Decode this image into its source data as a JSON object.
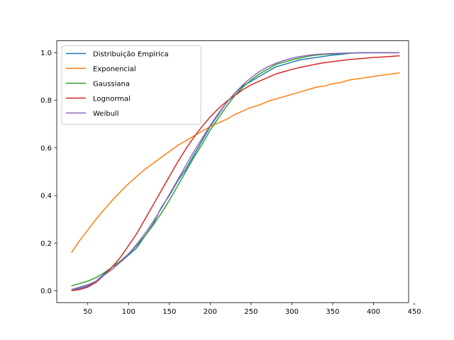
{
  "chart_data": {
    "type": "line",
    "title": "",
    "xlabel": "",
    "ylabel": "",
    "xlim": [
      12,
      443
    ],
    "ylim": [
      -0.05,
      1.05
    ],
    "xticks": [
      50,
      100,
      150,
      200,
      250,
      300,
      350,
      400,
      450
    ],
    "yticks": [
      0.0,
      0.2,
      0.4,
      0.6,
      0.8,
      1.0
    ],
    "xtick_labels": [
      "50",
      "100",
      "150",
      "200",
      "250",
      "300",
      "350",
      "400",
      "450"
    ],
    "ytick_labels": [
      "0.0",
      "0.2",
      "0.4",
      "0.6",
      "0.8",
      "1.0"
    ],
    "grid": false,
    "legend_position": "top-left",
    "series": [
      {
        "name": "Distribuição Empírica",
        "color": "#1f77b4",
        "x": [
          30,
          40,
          50,
          60,
          70,
          80,
          90,
          100,
          110,
          120,
          130,
          140,
          150,
          160,
          170,
          180,
          190,
          200,
          210,
          220,
          230,
          240,
          250,
          260,
          270,
          280,
          290,
          300,
          310,
          320,
          330,
          340,
          350,
          360,
          370,
          380,
          400,
          430
        ],
        "y": [
          0.0,
          0.01,
          0.02,
          0.04,
          0.07,
          0.1,
          0.12,
          0.15,
          0.18,
          0.23,
          0.28,
          0.35,
          0.4,
          0.46,
          0.51,
          0.57,
          0.63,
          0.69,
          0.74,
          0.79,
          0.83,
          0.86,
          0.88,
          0.9,
          0.92,
          0.94,
          0.95,
          0.96,
          0.97,
          0.975,
          0.98,
          0.985,
          0.99,
          0.993,
          0.997,
          1.0,
          1.0,
          1.0
        ]
      },
      {
        "name": "Exponencial",
        "color": "#ff7f0e",
        "x": [
          30,
          40,
          50,
          60,
          70,
          80,
          90,
          100,
          110,
          120,
          130,
          140,
          150,
          160,
          170,
          180,
          190,
          200,
          210,
          220,
          230,
          240,
          250,
          260,
          270,
          280,
          290,
          300,
          310,
          320,
          330,
          340,
          350,
          360,
          370,
          380,
          390,
          400,
          410,
          420,
          432
        ],
        "y": [
          0.16,
          0.21,
          0.255,
          0.3,
          0.34,
          0.38,
          0.415,
          0.45,
          0.48,
          0.51,
          0.535,
          0.56,
          0.585,
          0.61,
          0.63,
          0.65,
          0.67,
          0.69,
          0.705,
          0.72,
          0.74,
          0.755,
          0.77,
          0.78,
          0.795,
          0.805,
          0.815,
          0.825,
          0.835,
          0.845,
          0.855,
          0.86,
          0.87,
          0.875,
          0.885,
          0.89,
          0.895,
          0.9,
          0.905,
          0.91,
          0.915
        ]
      },
      {
        "name": "Gaussiana",
        "color": "#2ca02c",
        "x": [
          30,
          40,
          50,
          60,
          70,
          80,
          90,
          100,
          110,
          120,
          130,
          140,
          150,
          160,
          170,
          180,
          190,
          200,
          210,
          220,
          230,
          240,
          250,
          260,
          270,
          280,
          290,
          300,
          310,
          320,
          330,
          340,
          350,
          360,
          370,
          380,
          390,
          400,
          410,
          420,
          432
        ],
        "y": [
          0.02,
          0.03,
          0.04,
          0.055,
          0.075,
          0.1,
          0.125,
          0.155,
          0.19,
          0.23,
          0.275,
          0.325,
          0.38,
          0.44,
          0.5,
          0.56,
          0.615,
          0.675,
          0.725,
          0.775,
          0.82,
          0.855,
          0.885,
          0.91,
          0.93,
          0.95,
          0.96,
          0.97,
          0.978,
          0.985,
          0.99,
          0.993,
          0.995,
          0.997,
          0.998,
          0.999,
          0.999,
          1.0,
          1.0,
          1.0,
          1.0
        ]
      },
      {
        "name": "Lognormal",
        "color": "#d62728",
        "x": [
          30,
          40,
          50,
          60,
          70,
          80,
          90,
          100,
          110,
          120,
          130,
          140,
          150,
          160,
          170,
          180,
          190,
          200,
          210,
          220,
          230,
          240,
          250,
          260,
          270,
          280,
          290,
          300,
          310,
          320,
          330,
          340,
          350,
          360,
          370,
          380,
          390,
          400,
          410,
          420,
          432
        ],
        "y": [
          0.0,
          0.005,
          0.015,
          0.035,
          0.065,
          0.1,
          0.14,
          0.19,
          0.24,
          0.3,
          0.36,
          0.42,
          0.48,
          0.54,
          0.595,
          0.645,
          0.69,
          0.73,
          0.765,
          0.795,
          0.82,
          0.845,
          0.865,
          0.88,
          0.895,
          0.91,
          0.92,
          0.93,
          0.938,
          0.945,
          0.952,
          0.958,
          0.963,
          0.967,
          0.971,
          0.974,
          0.977,
          0.98,
          0.982,
          0.984,
          0.987
        ]
      },
      {
        "name": "Weibull",
        "color": "#9467bd",
        "x": [
          30,
          40,
          50,
          60,
          70,
          80,
          90,
          100,
          110,
          120,
          130,
          140,
          150,
          160,
          170,
          180,
          190,
          200,
          210,
          220,
          230,
          240,
          250,
          260,
          270,
          280,
          290,
          300,
          310,
          320,
          330,
          340,
          350,
          360,
          370,
          380,
          390,
          400,
          410,
          420,
          432
        ],
        "y": [
          0.005,
          0.015,
          0.025,
          0.04,
          0.065,
          0.09,
          0.12,
          0.155,
          0.195,
          0.24,
          0.29,
          0.345,
          0.405,
          0.465,
          0.525,
          0.585,
          0.64,
          0.695,
          0.745,
          0.79,
          0.83,
          0.865,
          0.895,
          0.92,
          0.94,
          0.955,
          0.967,
          0.977,
          0.984,
          0.989,
          0.993,
          0.995,
          0.997,
          0.998,
          0.999,
          0.999,
          1.0,
          1.0,
          1.0,
          1.0,
          1.0
        ]
      }
    ]
  }
}
